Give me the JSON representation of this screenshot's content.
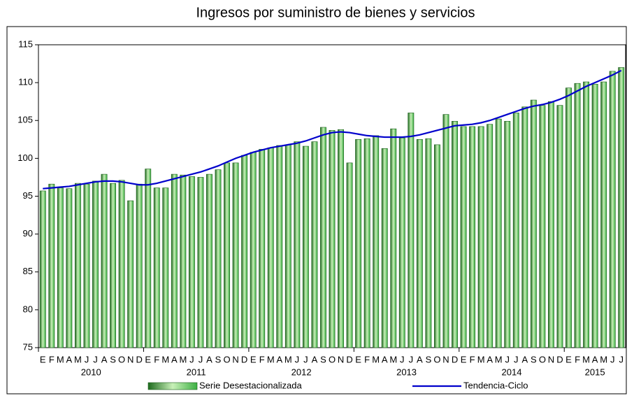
{
  "chart_data": {
    "type": "bar",
    "title": "Ingresos por suministro de bienes y servicios",
    "categories": [
      "E",
      "F",
      "M",
      "A",
      "M",
      "J",
      "J",
      "A",
      "S",
      "O",
      "N",
      "D",
      "E",
      "F",
      "M",
      "A",
      "M",
      "J",
      "J",
      "A",
      "S",
      "O",
      "N",
      "D",
      "E",
      "F",
      "M",
      "A",
      "M",
      "J",
      "J",
      "A",
      "S",
      "O",
      "N",
      "D",
      "E",
      "F",
      "M",
      "A",
      "M",
      "J",
      "J",
      "A",
      "S",
      "O",
      "N",
      "D",
      "E",
      "F",
      "M",
      "A",
      "M",
      "J",
      "J",
      "A",
      "S",
      "O",
      "N",
      "D",
      "E",
      "F",
      "M",
      "A",
      "M",
      "J",
      "J"
    ],
    "year_labels": [
      "2010",
      "2011",
      "2012",
      "2013",
      "2014",
      "2015"
    ],
    "series": [
      {
        "name": "Serie Desestacionalizada",
        "type": "bar",
        "color": "#3cb043",
        "values": [
          95.7,
          96.6,
          96.1,
          96.0,
          96.7,
          96.6,
          97.0,
          97.9,
          96.7,
          97.1,
          94.4,
          96.6,
          98.6,
          96.1,
          96.1,
          97.9,
          97.8,
          97.6,
          97.5,
          97.9,
          98.5,
          99.4,
          99.4,
          100.4,
          100.8,
          101.2,
          101.4,
          101.7,
          101.8,
          102.2,
          101.6,
          102.2,
          104.1,
          103.7,
          103.8,
          99.4,
          102.5,
          102.6,
          103.0,
          101.3,
          103.9,
          102.7,
          106.0,
          102.5,
          102.6,
          101.8,
          105.8,
          104.9,
          104.2,
          104.2,
          104.2,
          104.5,
          105.2,
          104.9,
          106.0,
          106.8,
          107.7,
          107.0,
          107.5,
          107.0,
          109.3,
          109.9,
          110.1,
          109.8,
          110.1,
          111.5,
          112.0
        ]
      },
      {
        "name": "Tendencia-Ciclo",
        "type": "line",
        "color": "#0000cc",
        "values": [
          96.0,
          96.1,
          96.2,
          96.3,
          96.5,
          96.7,
          96.9,
          97.0,
          97.0,
          96.9,
          96.7,
          96.5,
          96.5,
          96.7,
          97.0,
          97.3,
          97.6,
          97.9,
          98.2,
          98.6,
          99.0,
          99.5,
          100.0,
          100.4,
          100.8,
          101.1,
          101.4,
          101.6,
          101.8,
          102.0,
          102.3,
          102.7,
          103.1,
          103.4,
          103.5,
          103.4,
          103.2,
          103.0,
          102.9,
          102.8,
          102.8,
          102.8,
          102.9,
          103.1,
          103.4,
          103.7,
          104.0,
          104.3,
          104.4,
          104.5,
          104.7,
          105.0,
          105.4,
          105.8,
          106.2,
          106.6,
          106.9,
          107.1,
          107.4,
          107.8,
          108.3,
          108.9,
          109.5,
          110.0,
          110.5,
          111.0,
          111.6
        ]
      }
    ],
    "ylim": [
      75,
      115
    ],
    "yticks": [
      75,
      80,
      85,
      90,
      95,
      100,
      105,
      110,
      115
    ]
  }
}
